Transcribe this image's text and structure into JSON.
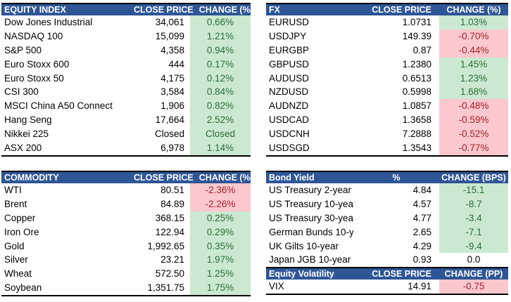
{
  "colors": {
    "header_bg": "#2E5696",
    "header_text": "#FFFFFF",
    "positive_bg": "#CBE9D0",
    "positive_text": "#2E6B39",
    "negative_bg": "#FBC8CD",
    "negative_text": "#A5202C",
    "border": "#000000"
  },
  "tables": {
    "equity": {
      "title": "EQUITY INDEX",
      "col_price": "CLOSE PRICE",
      "col_change": "CHANGE (%)",
      "rows": [
        {
          "name": "Dow Jones Industrial",
          "price": "34,061",
          "change": "0.66%",
          "dir": "up"
        },
        {
          "name": "NASDAQ 100",
          "price": "15,099",
          "change": "1.21%",
          "dir": "up"
        },
        {
          "name": "S&P 500",
          "price": "4,358",
          "change": "0.94%",
          "dir": "up"
        },
        {
          "name": "Euro Stoxx 600",
          "price": "444",
          "change": "0.17%",
          "dir": "up"
        },
        {
          "name": "Euro Stoxx 50",
          "price": "4,175",
          "change": "0.12%",
          "dir": "up"
        },
        {
          "name": "CSI 300",
          "price": "3,584",
          "change": "0.84%",
          "dir": "up"
        },
        {
          "name": "MSCI China A50 Connect",
          "price": "1,906",
          "change": "0.82%",
          "dir": "up"
        },
        {
          "name": "Hang Seng",
          "price": "17,664",
          "change": "2.52%",
          "dir": "up"
        },
        {
          "name": "Nikkei 225",
          "price": "Closed",
          "change": "Closed",
          "dir": "up"
        },
        {
          "name": "ASX 200",
          "price": "6,978",
          "change": "1.14%",
          "dir": "up"
        }
      ]
    },
    "fx": {
      "title": "FX",
      "col_price": "CLOSE PRICE",
      "col_change": "CHANGE (%)",
      "rows": [
        {
          "name": "EURUSD",
          "price": "1.0731",
          "change": "1.03%",
          "dir": "up"
        },
        {
          "name": "USDJPY",
          "price": "149.39",
          "change": "-0.70%",
          "dir": "down"
        },
        {
          "name": "EURGBP",
          "price": "0.87",
          "change": "-0.44%",
          "dir": "down"
        },
        {
          "name": "GBPUSD",
          "price": "1.2380",
          "change": "1.45%",
          "dir": "up"
        },
        {
          "name": "AUDUSD",
          "price": "0.6513",
          "change": "1.23%",
          "dir": "up"
        },
        {
          "name": "NZDUSD",
          "price": "0.5998",
          "change": "1.68%",
          "dir": "up"
        },
        {
          "name": "AUDNZD",
          "price": "1.0857",
          "change": "-0.48%",
          "dir": "down"
        },
        {
          "name": "USDCAD",
          "price": "1.3658",
          "change": "-0.59%",
          "dir": "down"
        },
        {
          "name": "USDCNH",
          "price": "7.2888",
          "change": "-0.52%",
          "dir": "down"
        },
        {
          "name": "USDSGD",
          "price": "1.3543",
          "change": "-0.77%",
          "dir": "down"
        }
      ]
    },
    "commodity": {
      "title": "COMMODITY",
      "col_price": "CLOSE PRICE",
      "col_change": "CHANGE (%)",
      "rows": [
        {
          "name": "WTI",
          "price": "80.51",
          "change": "-2.36%",
          "dir": "down"
        },
        {
          "name": "Brent",
          "price": "84.89",
          "change": "-2.26%",
          "dir": "down"
        },
        {
          "name": "Copper",
          "price": "368.15",
          "change": "0.25%",
          "dir": "up"
        },
        {
          "name": "Iron Ore",
          "price": "122.94",
          "change": "0.29%",
          "dir": "up"
        },
        {
          "name": "Gold",
          "price": "1,992.65",
          "change": "0.35%",
          "dir": "up"
        },
        {
          "name": "Silver",
          "price": "23.21",
          "change": "1.97%",
          "dir": "up"
        },
        {
          "name": "Wheat",
          "price": "572.50",
          "change": "1.25%",
          "dir": "up"
        },
        {
          "name": "Soybean",
          "price": "1,351.75",
          "change": "1.75%",
          "dir": "up"
        }
      ]
    },
    "bond": {
      "title": "Bond Yield",
      "col_price": "%",
      "col_change": "CHANGE (BPS)",
      "rows": [
        {
          "name": "US Treasury 2-year",
          "price": "4.84",
          "change": "-15.1",
          "dir": "up"
        },
        {
          "name": "US Treasury 10-year",
          "price": "4.57",
          "change": "-8.7",
          "dir": "up"
        },
        {
          "name": "US Treasury 30-year",
          "price": "4.77",
          "change": "-3.4",
          "dir": "up"
        },
        {
          "name": "German Bunds 10-year",
          "price": "2.65",
          "change": "-7.1",
          "dir": "up"
        },
        {
          "name": "UK Gilts 10-year",
          "price": "4.29",
          "change": "-9.4",
          "dir": "up"
        },
        {
          "name": "Japan JGB 10-year",
          "price": "0.93",
          "change": "0.0",
          "dir": "flat"
        }
      ]
    },
    "volatility": {
      "title": "Equity Volatility",
      "col_price": "CLOSE PRICE",
      "col_change": "CHANGE (PP)",
      "rows": [
        {
          "name": "VIX",
          "price": "14.91",
          "change": "-0.75",
          "dir": "down"
        }
      ]
    }
  }
}
